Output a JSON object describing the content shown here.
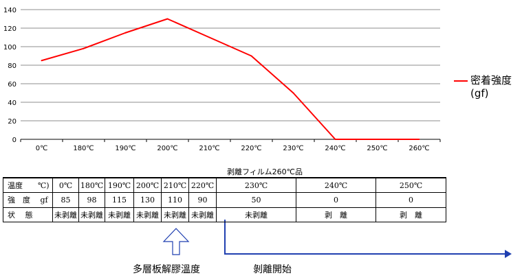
{
  "chart_data": {
    "type": "line",
    "categories": [
      "0℃",
      "180℃",
      "190℃",
      "200℃",
      "210℃",
      "220℃",
      "230℃",
      "240℃",
      "250℃",
      "260℃"
    ],
    "series": [
      {
        "name": "密着強度(gf)",
        "values": [
          85,
          98,
          115,
          130,
          110,
          90,
          50,
          0,
          0,
          0
        ],
        "color": "#ff0000"
      }
    ],
    "yticks": [
      "0",
      "20",
      "40",
      "60",
      "80",
      "100",
      "120",
      "140"
    ],
    "ylim": [
      0,
      140
    ],
    "grid": true,
    "legend": "right"
  },
  "legend": {
    "label_line1": "密着強度",
    "label_line2": "(gf)"
  },
  "table": {
    "caption": "剥離フィルム260℃品",
    "rows": [
      {
        "head": "温度　　℃)",
        "cells": [
          "0℃",
          "180℃",
          "190℃",
          "200℃",
          "210℃",
          "220℃",
          "230℃",
          "240℃",
          "250℃"
        ]
      },
      {
        "head": "強　度　 gf",
        "cells": [
          "85",
          "98",
          "115",
          "130",
          "110",
          "90",
          "50",
          "0",
          "0"
        ]
      },
      {
        "head": "状　 態",
        "cells": [
          "未剥離",
          "未剥離",
          "未剥離",
          "未剥離",
          "未剥離",
          "未剥離",
          "未剥離",
          "剥　離",
          "剥　離"
        ]
      }
    ]
  },
  "annotations": {
    "up_arrow_label": "多層板解膠溫度",
    "right_arrow_label": "剝離開始",
    "arrow_color": "#1f3fb0"
  }
}
